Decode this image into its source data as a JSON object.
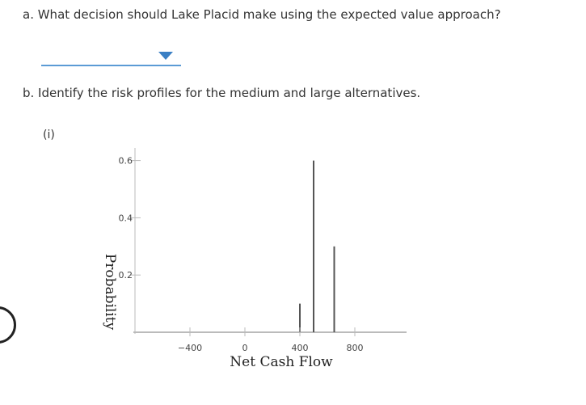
{
  "questions": {
    "a": "a. What decision should Lake Placid make using the expected value approach?",
    "b": "b. Identify the risk profiles for the medium and large alternatives."
  },
  "dropdown": {
    "selected_value": ""
  },
  "option_label": "(i)",
  "colors": {
    "dropdown_underline": "#5b9bd5",
    "dropdown_caret": "#3a7fc4",
    "axis": "#bbbbbb",
    "bars": "#555555"
  },
  "chart_data": {
    "type": "bar",
    "xlabel": "Net Cash Flow",
    "ylabel": "Probability",
    "xlim": [
      -600,
      900
    ],
    "ylim": [
      0,
      0.65
    ],
    "x_ticks": [
      -400,
      0,
      400,
      800
    ],
    "x_tick_labels": [
      "−400",
      "0",
      "400",
      "800"
    ],
    "y_ticks": [
      0.2,
      0.4,
      0.6
    ],
    "y_tick_labels": [
      "0.2",
      "0.4",
      "0.6"
    ],
    "series": [
      {
        "x": [
          400,
          500,
          650
        ],
        "values": [
          0.1,
          0.6,
          0.3
        ]
      }
    ]
  }
}
